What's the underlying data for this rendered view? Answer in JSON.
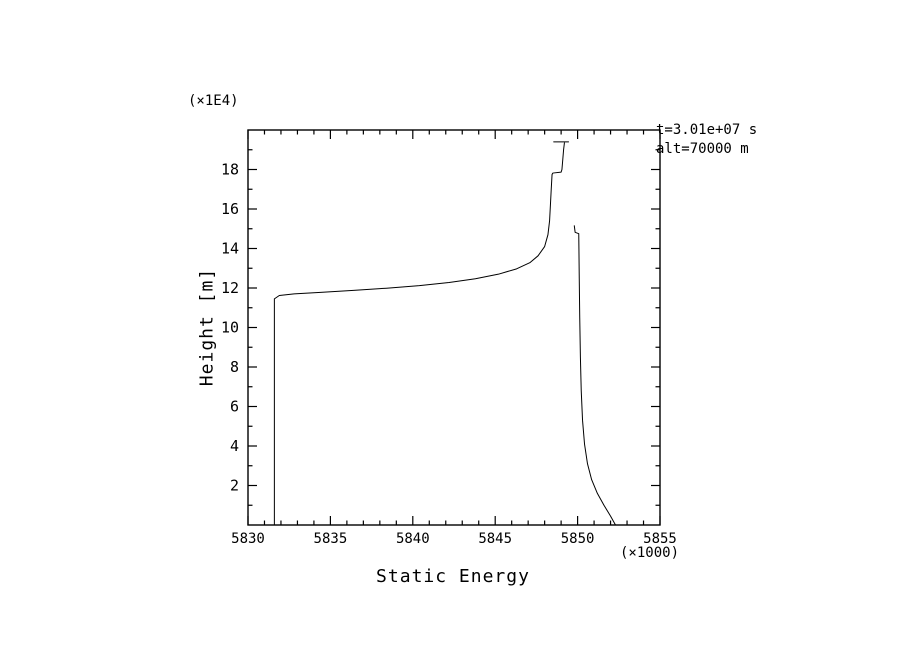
{
  "chart_data": {
    "type": "line",
    "title": "",
    "xlabel": "Static Energy",
    "ylabel": "Height [m]",
    "x_scale_note": "(×1000)",
    "y_scale_note": "(×1E4)",
    "annotations": [
      "t=3.01e+07 s",
      "alt=70000 m"
    ],
    "xlim": [
      5830,
      5855
    ],
    "ylim": [
      0,
      20
    ],
    "x_major_ticks": [
      5830,
      5835,
      5840,
      5845,
      5850,
      5855
    ],
    "x_tick_labels": [
      "5830",
      "5835",
      "5840",
      "5845",
      "5850",
      "5855"
    ],
    "x_minor_step": 1,
    "y_major_ticks": [
      2,
      4,
      6,
      8,
      10,
      12,
      14,
      16,
      18
    ],
    "y_tick_labels": [
      "2",
      "4",
      "6",
      "8",
      "10",
      "12",
      "14",
      "16",
      "18"
    ],
    "y_minor_step": 1,
    "grid": false,
    "legend": null,
    "line_color": "#000000",
    "background_color": "#ffffff",
    "series": [
      {
        "name": "lower-branch",
        "points": [
          [
            5831.6,
            0.0
          ],
          [
            5831.6,
            11.45
          ],
          [
            5831.9,
            11.62
          ],
          [
            5832.8,
            11.7
          ],
          [
            5834.4,
            11.78
          ],
          [
            5836.4,
            11.88
          ],
          [
            5838.4,
            11.99
          ],
          [
            5840.4,
            12.12
          ],
          [
            5842.2,
            12.28
          ],
          [
            5843.8,
            12.47
          ],
          [
            5845.2,
            12.7
          ],
          [
            5846.3,
            12.97
          ],
          [
            5847.1,
            13.28
          ],
          [
            5847.6,
            13.63
          ],
          [
            5848.0,
            14.1
          ],
          [
            5848.2,
            14.7
          ],
          [
            5848.3,
            15.4
          ],
          [
            5848.35,
            16.2
          ],
          [
            5848.4,
            17.0
          ],
          [
            5848.45,
            17.75
          ],
          [
            5848.5,
            17.82
          ],
          [
            5849.0,
            17.87
          ],
          [
            5849.05,
            18.0
          ],
          [
            5849.1,
            18.5
          ],
          [
            5849.15,
            19.0
          ],
          [
            5849.2,
            19.35
          ]
        ]
      },
      {
        "name": "top-cap",
        "points": [
          [
            5848.55,
            19.4
          ],
          [
            5849.45,
            19.4
          ]
        ]
      },
      {
        "name": "upper-branch",
        "points": [
          [
            5852.3,
            0.0
          ],
          [
            5852.0,
            0.45
          ],
          [
            5851.6,
            1.0
          ],
          [
            5851.2,
            1.6
          ],
          [
            5850.85,
            2.3
          ],
          [
            5850.6,
            3.1
          ],
          [
            5850.42,
            4.1
          ],
          [
            5850.3,
            5.3
          ],
          [
            5850.22,
            6.8
          ],
          [
            5850.17,
            8.5
          ],
          [
            5850.13,
            10.5
          ],
          [
            5850.1,
            12.5
          ],
          [
            5850.08,
            14.0
          ],
          [
            5850.07,
            14.75
          ],
          [
            5849.85,
            14.82
          ],
          [
            5849.8,
            15.15
          ]
        ]
      }
    ]
  }
}
